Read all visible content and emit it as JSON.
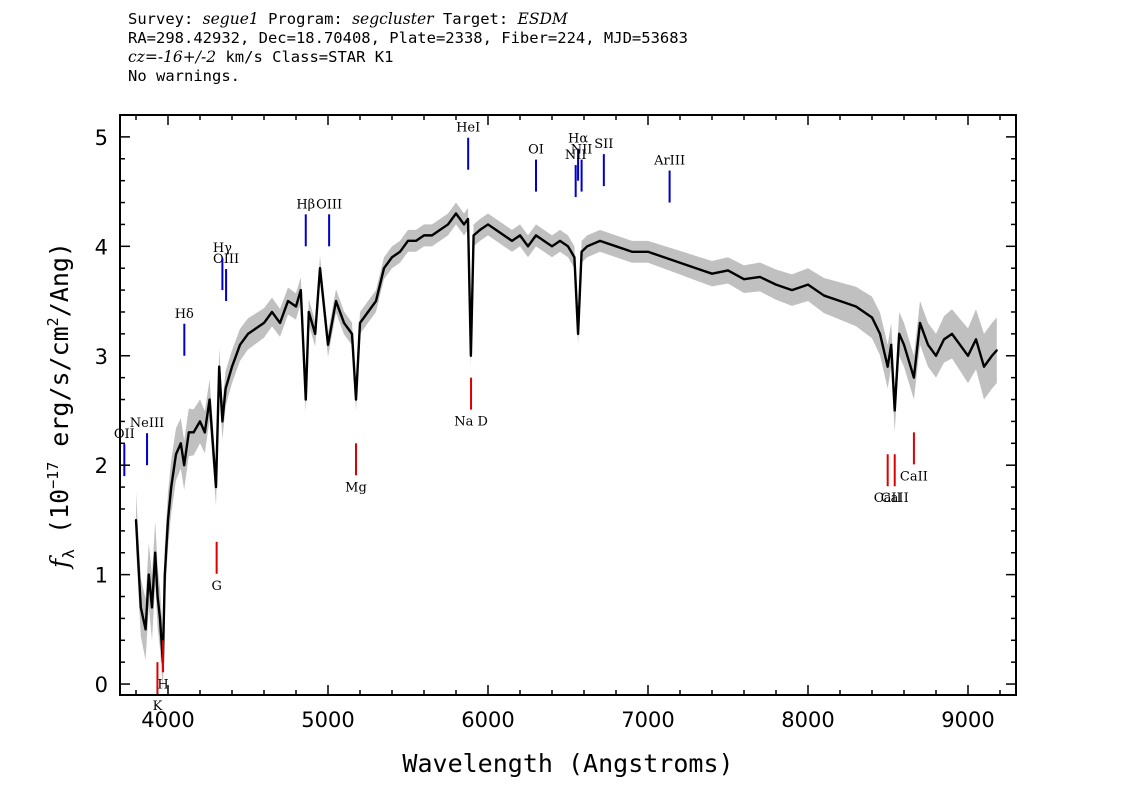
{
  "header": {
    "survey_label": "Survey:",
    "survey": "segue1",
    "program_label": "Program:",
    "program": "segcluster",
    "target_label": "Target:",
    "target": "ESDM",
    "line2": "RA=298.42932, Dec=18.70408, Plate=2338, Fiber=224, MJD=53683",
    "redshift": "cz=-16+/-2",
    "redshift_units": "km/s",
    "class_text": "Class=STAR K1",
    "warnings": "No warnings."
  },
  "chart_data": {
    "type": "line",
    "xlabel": "Wavelength (Angstroms)",
    "ylabel_parts": {
      "f": "f",
      "sub": "λ",
      "open": " (10",
      "exp1": "−17",
      "mid": " erg/s/cm",
      "exp2": "2",
      "close": "/Ang)"
    },
    "xlim": [
      3700,
      9300
    ],
    "ylim": [
      -0.1,
      5.2
    ],
    "xticks": [
      4000,
      5000,
      6000,
      7000,
      8000,
      9000
    ],
    "yticks": [
      0,
      1,
      2,
      3,
      4,
      5
    ],
    "series": [
      {
        "role": "flux",
        "color": "#000000",
        "x": [
          3800,
          3830,
          3860,
          3880,
          3900,
          3920,
          3935,
          3950,
          3968,
          3980,
          4000,
          4020,
          4050,
          4080,
          4101,
          4130,
          4160,
          4200,
          4230,
          4260,
          4300,
          4320,
          4340,
          4360,
          4400,
          4450,
          4500,
          4550,
          4600,
          4650,
          4700,
          4750,
          4800,
          4830,
          4861,
          4880,
          4920,
          4950,
          5000,
          5050,
          5100,
          5150,
          5175,
          5200,
          5250,
          5300,
          5350,
          5400,
          5450,
          5500,
          5550,
          5600,
          5650,
          5700,
          5750,
          5800,
          5850,
          5875,
          5893,
          5910,
          5950,
          6000,
          6050,
          6100,
          6150,
          6200,
          6250,
          6300,
          6350,
          6400,
          6450,
          6500,
          6540,
          6563,
          6585,
          6620,
          6700,
          6800,
          6900,
          7000,
          7100,
          7200,
          7300,
          7400,
          7500,
          7600,
          7700,
          7800,
          7900,
          8000,
          8100,
          8200,
          8300,
          8400,
          8450,
          8498,
          8520,
          8542,
          8570,
          8600,
          8662,
          8700,
          8750,
          8800,
          8850,
          8900,
          8950,
          9000,
          9050,
          9100,
          9150,
          9180
        ],
        "y": [
          1.5,
          0.7,
          0.5,
          1.0,
          0.7,
          1.2,
          0.8,
          0.6,
          0.2,
          1.0,
          1.5,
          1.8,
          2.1,
          2.2,
          2.0,
          2.3,
          2.3,
          2.4,
          2.3,
          2.6,
          1.8,
          2.9,
          2.4,
          2.7,
          2.9,
          3.1,
          3.2,
          3.25,
          3.3,
          3.4,
          3.3,
          3.5,
          3.45,
          3.6,
          2.6,
          3.4,
          3.2,
          3.8,
          3.1,
          3.5,
          3.3,
          3.2,
          2.6,
          3.3,
          3.4,
          3.5,
          3.8,
          3.9,
          3.95,
          4.05,
          4.05,
          4.1,
          4.1,
          4.15,
          4.2,
          4.3,
          4.2,
          4.25,
          3.0,
          4.1,
          4.15,
          4.2,
          4.15,
          4.1,
          4.05,
          4.1,
          4.0,
          4.1,
          4.05,
          4.0,
          4.05,
          4.0,
          3.9,
          3.2,
          3.95,
          4.0,
          4.05,
          4.0,
          3.95,
          3.95,
          3.9,
          3.85,
          3.8,
          3.75,
          3.78,
          3.7,
          3.72,
          3.65,
          3.6,
          3.65,
          3.55,
          3.5,
          3.45,
          3.35,
          3.2,
          2.9,
          3.1,
          2.5,
          3.2,
          3.1,
          2.8,
          3.3,
          3.1,
          3.0,
          3.15,
          3.2,
          3.1,
          3.0,
          3.15,
          2.9,
          3.0,
          3.05
        ]
      },
      {
        "role": "error",
        "color": "#c0c0c0",
        "x": [
          3800,
          3900,
          4000,
          4200,
          4400,
          4800,
          5200,
          5600,
          6000,
          6500,
          7000,
          7500,
          8000,
          8500,
          8800,
          9000,
          9100,
          9180
        ],
        "y": [
          0.25,
          0.3,
          0.25,
          0.2,
          0.15,
          0.12,
          0.1,
          0.1,
          0.1,
          0.1,
          0.1,
          0.12,
          0.15,
          0.2,
          0.2,
          0.25,
          0.3,
          0.3
        ]
      }
    ],
    "emission_lines": [
      {
        "label": "ArIII",
        "wavelength": 7135,
        "y": 4.4
      },
      {
        "label": "SII",
        "wavelength": 6724,
        "y": 4.55
      },
      {
        "label": "NII",
        "wavelength": 6585,
        "y": 4.5
      },
      {
        "label": "Hα",
        "wavelength": 6563,
        "y": 4.6
      },
      {
        "label": "NII",
        "wavelength": 6548,
        "y": 4.45
      },
      {
        "label": "OI",
        "wavelength": 6300,
        "y": 4.5
      },
      {
        "label": "HeI",
        "wavelength": 5876,
        "y": 4.7
      },
      {
        "label": "OIII",
        "wavelength": 5007,
        "y": 4.0
      },
      {
        "label": "Hβ",
        "wavelength": 4861,
        "y": 4.0
      },
      {
        "label": "OIII",
        "wavelength": 4363,
        "y": 3.5
      },
      {
        "label": "Hγ",
        "wavelength": 4340,
        "y": 3.6
      },
      {
        "label": "Hδ",
        "wavelength": 4102,
        "y": 3.0
      },
      {
        "label": "NeIII",
        "wavelength": 3869,
        "y": 2.0
      },
      {
        "label": "OII",
        "wavelength": 3727,
        "y": 1.9
      }
    ],
    "absorption_lines": [
      {
        "label": "K",
        "wavelength": 3934,
        "y": 0.2
      },
      {
        "label": "H",
        "wavelength": 3969,
        "y": 0.4
      },
      {
        "label": "G",
        "wavelength": 4304,
        "y": 1.3
      },
      {
        "label": "Mg",
        "wavelength": 5175,
        "y": 2.2
      },
      {
        "label": "Na D",
        "wavelength": 5894,
        "y": 2.8
      },
      {
        "label": "CaII",
        "wavelength": 8498,
        "y": 2.1
      },
      {
        "label": "CaII",
        "wavelength": 8542,
        "y": 2.1
      },
      {
        "label": "CaII",
        "wavelength": 8662,
        "y": 2.3
      }
    ],
    "line_colors": {
      "emission": "#0000cc",
      "absorption": "#dd0000"
    }
  }
}
